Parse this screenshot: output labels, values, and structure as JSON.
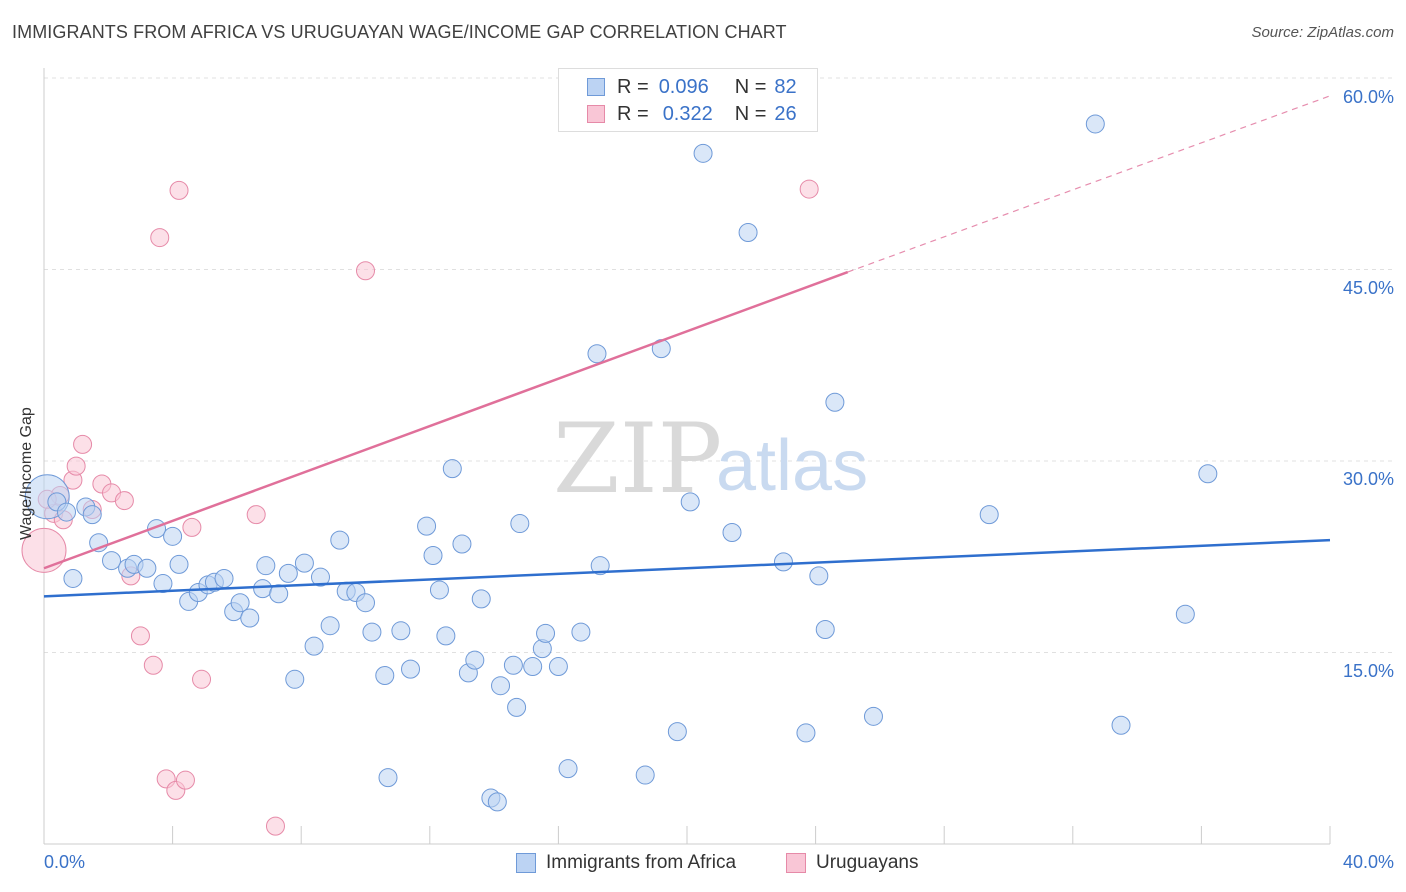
{
  "header": {
    "title": "IMMIGRANTS FROM AFRICA VS URUGUAYAN WAGE/INCOME GAP CORRELATION CHART",
    "source": "Source: ZipAtlas.com"
  },
  "watermark": {
    "zip": "ZIP",
    "atlas": "atlas"
  },
  "legend_top": {
    "rows": [
      {
        "r_label": "R =",
        "r_value": "0.096",
        "n_label": "N =",
        "n_value": "82"
      },
      {
        "r_label": "R =",
        "r_value": "0.322",
        "n_label": "N =",
        "n_value": "26"
      }
    ]
  },
  "legend_bottom": {
    "items": [
      "Immigrants from Africa",
      "Uruguayans"
    ]
  },
  "colors": {
    "blue_fill": "#bcd3f3",
    "blue_stroke": "#6f9ad8",
    "blue_line": "#2f6fce",
    "pink_fill": "#f9c6d6",
    "pink_stroke": "#e68aa8",
    "pink_line": "#e0709a",
    "tick_text": "#3a72c8",
    "grid": "#e0e0e0"
  },
  "chart_data": {
    "type": "scatter",
    "title": "IMMIGRANTS FROM AFRICA VS URUGUAYAN WAGE/INCOME GAP CORRELATION CHART",
    "xlabel": "",
    "ylabel": "Wage/Income Gap",
    "xlim": [
      0,
      40
    ],
    "ylim": [
      0,
      60
    ],
    "x_tick_labels": [
      "0.0%",
      "40.0%"
    ],
    "y_tick_labels": [
      "15.0%",
      "30.0%",
      "45.0%",
      "60.0%"
    ],
    "y_ticks": [
      15,
      30,
      45,
      60
    ],
    "grid": true,
    "legend_position": "top-center",
    "series": [
      {
        "name": "Immigrants from Africa",
        "trend": {
          "x0": 0,
          "y0": 19.4,
          "x1": 40,
          "y1": 23.8
        },
        "points": [
          [
            0.1,
            27.2
          ],
          [
            0.4,
            26.8
          ],
          [
            0.7,
            26.0
          ],
          [
            1.3,
            26.4
          ],
          [
            1.5,
            25.8
          ],
          [
            0.9,
            20.8
          ],
          [
            1.7,
            23.6
          ],
          [
            2.1,
            22.2
          ],
          [
            2.6,
            21.6
          ],
          [
            2.8,
            21.9
          ],
          [
            3.2,
            21.6
          ],
          [
            3.5,
            24.7
          ],
          [
            3.7,
            20.4
          ],
          [
            4.0,
            24.1
          ],
          [
            4.2,
            21.9
          ],
          [
            4.5,
            19.0
          ],
          [
            4.8,
            19.7
          ],
          [
            5.1,
            20.3
          ],
          [
            5.3,
            20.5
          ],
          [
            5.6,
            20.8
          ],
          [
            5.9,
            18.2
          ],
          [
            6.1,
            18.9
          ],
          [
            6.4,
            17.7
          ],
          [
            6.8,
            20.0
          ],
          [
            6.9,
            21.8
          ],
          [
            7.3,
            19.6
          ],
          [
            7.6,
            21.2
          ],
          [
            7.8,
            12.9
          ],
          [
            8.1,
            22.0
          ],
          [
            8.4,
            15.5
          ],
          [
            8.6,
            20.9
          ],
          [
            8.9,
            17.1
          ],
          [
            9.2,
            23.8
          ],
          [
            9.4,
            19.8
          ],
          [
            9.7,
            19.7
          ],
          [
            10.0,
            18.9
          ],
          [
            10.2,
            16.6
          ],
          [
            10.6,
            13.2
          ],
          [
            10.7,
            5.2
          ],
          [
            11.1,
            16.7
          ],
          [
            11.4,
            13.7
          ],
          [
            11.9,
            24.9
          ],
          [
            12.1,
            22.6
          ],
          [
            12.3,
            19.9
          ],
          [
            12.5,
            16.3
          ],
          [
            12.7,
            29.4
          ],
          [
            13.0,
            23.5
          ],
          [
            13.2,
            13.4
          ],
          [
            13.4,
            14.4
          ],
          [
            13.6,
            19.2
          ],
          [
            13.9,
            3.6
          ],
          [
            14.1,
            3.3
          ],
          [
            14.2,
            12.4
          ],
          [
            14.7,
            10.7
          ],
          [
            14.8,
            25.1
          ],
          [
            15.2,
            13.9
          ],
          [
            15.5,
            15.3
          ],
          [
            15.6,
            16.5
          ],
          [
            16.0,
            13.9
          ],
          [
            16.3,
            5.9
          ],
          [
            16.7,
            16.6
          ],
          [
            17.3,
            21.8
          ],
          [
            17.2,
            38.4
          ],
          [
            18.7,
            5.4
          ],
          [
            19.2,
            38.8
          ],
          [
            19.7,
            8.8
          ],
          [
            20.1,
            26.8
          ],
          [
            20.5,
            54.1
          ],
          [
            21.4,
            24.4
          ],
          [
            21.9,
            47.9
          ],
          [
            23.0,
            22.1
          ],
          [
            23.7,
            8.7
          ],
          [
            24.1,
            21.0
          ],
          [
            24.3,
            16.8
          ],
          [
            24.6,
            34.6
          ],
          [
            25.8,
            10.0
          ],
          [
            29.4,
            25.8
          ],
          [
            32.7,
            56.4
          ],
          [
            33.5,
            9.3
          ],
          [
            36.2,
            29.0
          ],
          [
            35.5,
            18.0
          ],
          [
            14.6,
            14.0
          ]
        ]
      },
      {
        "name": "Uruguayans",
        "trend": {
          "x0": 0,
          "y0": 21.6,
          "x1": 25,
          "y1": 44.8,
          "dashed_to": {
            "x": 40,
            "y": 58.6
          }
        },
        "points": [
          [
            0.0,
            23.0
          ],
          [
            0.3,
            25.9
          ],
          [
            0.5,
            27.3
          ],
          [
            0.6,
            25.4
          ],
          [
            0.9,
            28.5
          ],
          [
            1.0,
            29.6
          ],
          [
            1.2,
            31.3
          ],
          [
            1.5,
            26.2
          ],
          [
            1.8,
            28.2
          ],
          [
            2.1,
            27.5
          ],
          [
            2.5,
            26.9
          ],
          [
            2.7,
            21.0
          ],
          [
            3.0,
            16.3
          ],
          [
            3.4,
            14.0
          ],
          [
            3.6,
            47.5
          ],
          [
            3.8,
            5.1
          ],
          [
            4.1,
            4.2
          ],
          [
            4.2,
            51.2
          ],
          [
            4.4,
            5.0
          ],
          [
            4.6,
            24.8
          ],
          [
            4.9,
            12.9
          ],
          [
            6.6,
            25.8
          ],
          [
            7.2,
            1.4
          ],
          [
            10.0,
            44.9
          ],
          [
            23.8,
            51.3
          ],
          [
            0.1,
            27.0
          ]
        ]
      }
    ]
  }
}
